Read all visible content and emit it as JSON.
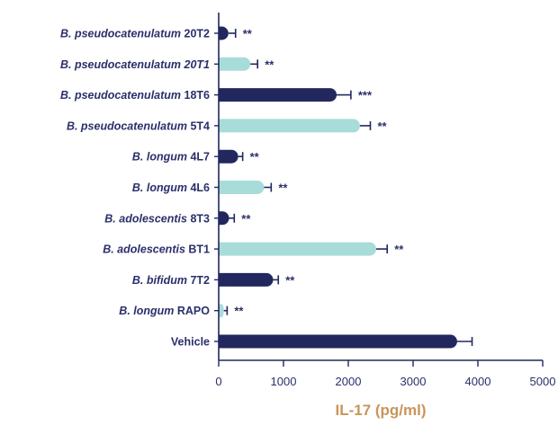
{
  "chart_data": {
    "type": "bar",
    "orientation": "horizontal",
    "xlabel": "IL-17 (pg/ml)",
    "xlim": [
      0,
      5000
    ],
    "xticks": [
      0,
      1000,
      2000,
      3000,
      4000,
      5000
    ],
    "grid": false,
    "categories": [
      {
        "italic": "B. pseudocatenulatum",
        "strain": " 20T2",
        "value": 150,
        "error": 110,
        "sig": "**",
        "color": "#22285e"
      },
      {
        "italic": "B. pseudocatenulatum 20T1",
        "strain": "",
        "value": 490,
        "error": 110,
        "sig": "**",
        "color": "#a8dcd9"
      },
      {
        "italic": "B. pseudocatenulatum",
        "strain": " 18T6",
        "value": 1820,
        "error": 220,
        "sig": "***",
        "color": "#22285e"
      },
      {
        "italic": "B. pseudocatenulatum",
        "strain": " 5T4",
        "value": 2180,
        "error": 160,
        "sig": "**",
        "color": "#a8dcd9"
      },
      {
        "italic": "B. longum",
        "strain": " 4L7",
        "value": 300,
        "error": 70,
        "sig": "**",
        "color": "#22285e"
      },
      {
        "italic": "B. longum",
        "strain": " 4L6",
        "value": 700,
        "error": 110,
        "sig": "**",
        "color": "#a8dcd9"
      },
      {
        "italic": "B. adolescentis",
        "strain": " 8T3",
        "value": 160,
        "error": 80,
        "sig": "**",
        "color": "#22285e"
      },
      {
        "italic": "B. adolescentis",
        "strain": " BT1",
        "value": 2430,
        "error": 170,
        "sig": "**",
        "color": "#a8dcd9"
      },
      {
        "italic": "B. bifidum",
        "strain": " 7T2",
        "value": 840,
        "error": 80,
        "sig": "**",
        "color": "#22285e"
      },
      {
        "italic": "B. longum",
        "strain": " RAPO",
        "value": 80,
        "error": 50,
        "sig": "**",
        "color": "#a8dcd9"
      },
      {
        "italic": "",
        "strain": "Vehicle",
        "value": 3680,
        "error": 230,
        "sig": "",
        "color": "#22285e"
      }
    ]
  }
}
